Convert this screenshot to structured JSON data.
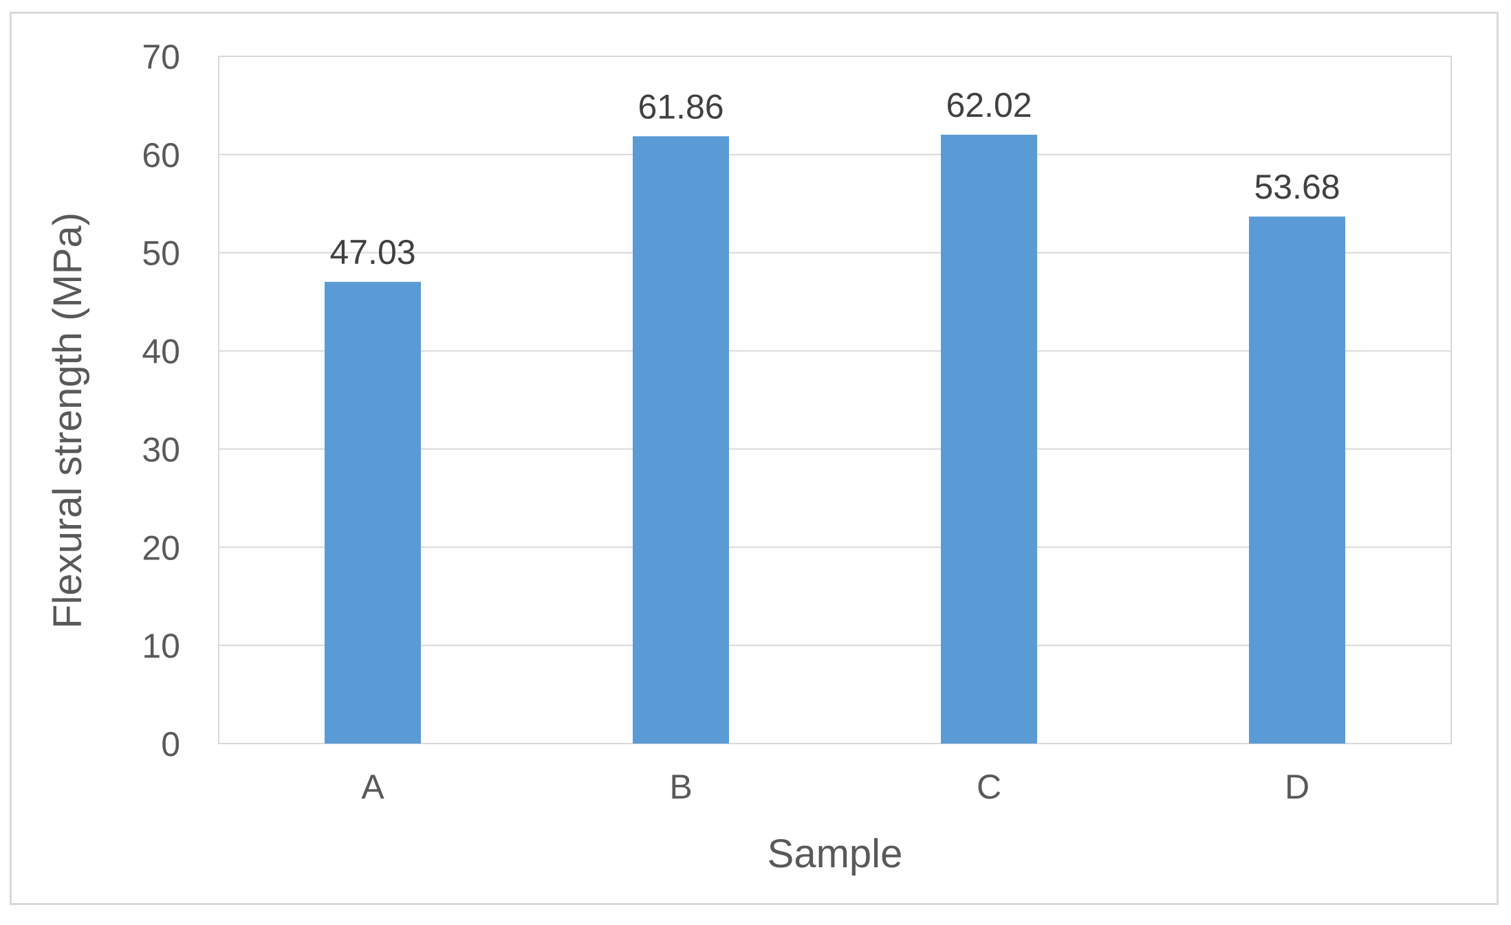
{
  "chart_data": {
    "type": "bar",
    "title": "",
    "xlabel": "Sample",
    "ylabel": "Flexural strength (MPa)",
    "categories": [
      "A",
      "B",
      "C",
      "D"
    ],
    "values": [
      47.03,
      61.86,
      62.02,
      53.68
    ],
    "data_labels": [
      "47.03",
      "61.86",
      "62.02",
      "53.68"
    ],
    "ylim": [
      0,
      70
    ],
    "yticks": [
      0,
      10,
      20,
      30,
      40,
      50,
      60,
      70
    ],
    "grid": true,
    "legend": "none",
    "colors": {
      "bar": "#5b9bd5",
      "grid": "#d9d9d9",
      "text": "#595959",
      "label": "#404040"
    }
  }
}
